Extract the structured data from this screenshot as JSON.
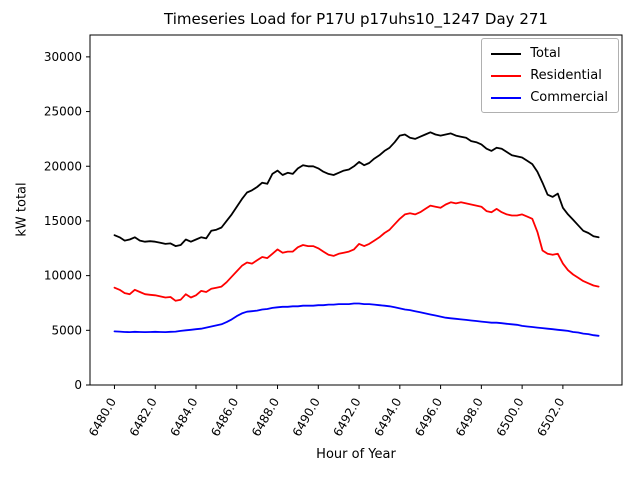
{
  "chart_data": {
    "type": "line",
    "title": "Timeseries Load for P17U p17uhs10_1247  Day 271",
    "xlabel": "Hour of Year",
    "ylabel": "kW total",
    "xlim": [
      6478.8,
      6504.9
    ],
    "ylim": [
      0,
      32000
    ],
    "grid": false,
    "legend_position": "upper right",
    "xticks": [
      6480,
      6482,
      6484,
      6486,
      6488,
      6490,
      6492,
      6494,
      6496,
      6498,
      6500,
      6502
    ],
    "xtick_labels": [
      "6480.0",
      "6482.0",
      "6484.0",
      "6486.0",
      "6488.0",
      "6490.0",
      "6492.0",
      "6494.0",
      "6496.0",
      "6498.0",
      "6500.0",
      "6502.0"
    ],
    "yticks": [
      0,
      5000,
      10000,
      15000,
      20000,
      25000,
      30000
    ],
    "ytick_labels": [
      "0",
      "5000",
      "10000",
      "15000",
      "20000",
      "25000",
      "30000"
    ],
    "x": [
      6480,
      6480.25,
      6480.5,
      6480.75,
      6481,
      6481.25,
      6481.5,
      6481.75,
      6482,
      6482.25,
      6482.5,
      6482.75,
      6483,
      6483.25,
      6483.5,
      6483.75,
      6484,
      6484.25,
      6484.5,
      6484.75,
      6485,
      6485.25,
      6485.5,
      6485.75,
      6486,
      6486.25,
      6486.5,
      6486.75,
      6487,
      6487.25,
      6487.5,
      6487.75,
      6488,
      6488.25,
      6488.5,
      6488.75,
      6489,
      6489.25,
      6489.5,
      6489.75,
      6490,
      6490.25,
      6490.5,
      6490.75,
      6491,
      6491.25,
      6491.5,
      6491.75,
      6492,
      6492.25,
      6492.5,
      6492.75,
      6493,
      6493.25,
      6493.5,
      6493.75,
      6494,
      6494.25,
      6494.5,
      6494.75,
      6495,
      6495.25,
      6495.5,
      6495.75,
      6496,
      6496.25,
      6496.5,
      6496.75,
      6497,
      6497.25,
      6497.5,
      6497.75,
      6498,
      6498.25,
      6498.5,
      6498.75,
      6499,
      6499.25,
      6499.5,
      6499.75,
      6500,
      6500.25,
      6500.5,
      6500.75,
      6501,
      6501.25,
      6501.5,
      6501.75,
      6502,
      6502.25,
      6502.5,
      6502.75,
      6503,
      6503.25,
      6503.5,
      6503.75
    ],
    "series": [
      {
        "name": "Total",
        "color": "#000000",
        "values": [
          13700,
          13500,
          13200,
          13300,
          13500,
          13200,
          13100,
          13150,
          13100,
          13000,
          12900,
          12950,
          12700,
          12800,
          13300,
          13100,
          13300,
          13500,
          13400,
          14100,
          14200,
          14400,
          15000,
          15600,
          16300,
          17000,
          17600,
          17800,
          18100,
          18500,
          18400,
          19300,
          19600,
          19200,
          19400,
          19300,
          19800,
          20100,
          20000,
          20000,
          19800,
          19500,
          19300,
          19200,
          19400,
          19600,
          19700,
          20000,
          20400,
          20100,
          20300,
          20700,
          21000,
          21400,
          21700,
          22200,
          22800,
          22900,
          22600,
          22500,
          22700,
          22900,
          23100,
          22900,
          22800,
          22900,
          23000,
          22800,
          22700,
          22600,
          22300,
          22200,
          22000,
          21600,
          21400,
          21700,
          21600,
          21300,
          21000,
          20900,
          20800,
          20500,
          20200,
          19500,
          18500,
          17400,
          17200,
          17500,
          16200,
          15600,
          15100,
          14600,
          14100,
          13900,
          13600,
          13500
        ]
      },
      {
        "name": "Residential",
        "color": "#ff0000",
        "values": [
          8900,
          8700,
          8400,
          8300,
          8700,
          8500,
          8300,
          8250,
          8200,
          8100,
          8000,
          8050,
          7700,
          7800,
          8300,
          8000,
          8200,
          8600,
          8500,
          8800,
          8900,
          9000,
          9400,
          9900,
          10400,
          10900,
          11200,
          11100,
          11400,
          11700,
          11600,
          12000,
          12400,
          12100,
          12200,
          12200,
          12600,
          12800,
          12700,
          12700,
          12500,
          12200,
          11900,
          11800,
          12000,
          12100,
          12200,
          12400,
          12900,
          12700,
          12900,
          13200,
          13500,
          13900,
          14200,
          14700,
          15200,
          15600,
          15700,
          15600,
          15800,
          16100,
          16400,
          16300,
          16200,
          16500,
          16700,
          16600,
          16700,
          16600,
          16500,
          16400,
          16300,
          15900,
          15800,
          16100,
          15800,
          15600,
          15500,
          15500,
          15600,
          15400,
          15200,
          14000,
          12300,
          12000,
          11900,
          12000,
          11100,
          10500,
          10100,
          9800,
          9500,
          9300,
          9100,
          9000
        ]
      },
      {
        "name": "Commercial",
        "color": "#0000ff",
        "values": [
          4900,
          4880,
          4850,
          4840,
          4860,
          4850,
          4840,
          4850,
          4860,
          4850,
          4840,
          4860,
          4880,
          4950,
          5000,
          5050,
          5100,
          5150,
          5250,
          5350,
          5450,
          5550,
          5750,
          6000,
          6300,
          6550,
          6700,
          6750,
          6800,
          6900,
          6950,
          7050,
          7100,
          7150,
          7150,
          7200,
          7200,
          7250,
          7250,
          7250,
          7300,
          7300,
          7350,
          7350,
          7400,
          7400,
          7400,
          7450,
          7450,
          7400,
          7400,
          7350,
          7300,
          7250,
          7200,
          7100,
          7000,
          6900,
          6850,
          6750,
          6650,
          6550,
          6450,
          6350,
          6250,
          6150,
          6100,
          6050,
          6000,
          5950,
          5900,
          5850,
          5800,
          5750,
          5700,
          5700,
          5650,
          5600,
          5550,
          5500,
          5400,
          5350,
          5300,
          5250,
          5200,
          5150,
          5100,
          5050,
          5000,
          4950,
          4850,
          4800,
          4700,
          4650,
          4550,
          4500
        ]
      }
    ]
  }
}
